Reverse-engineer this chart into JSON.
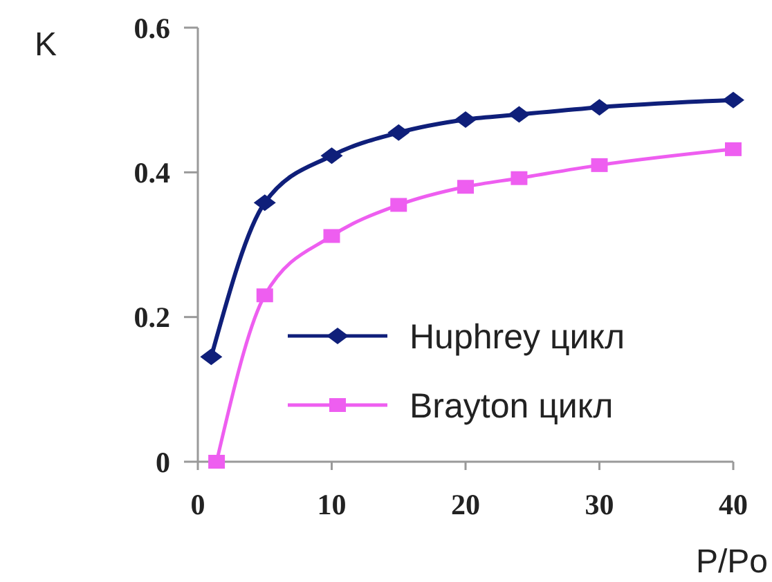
{
  "chart_data": {
    "type": "line",
    "xlabel": "P/Po",
    "ylabel": "K",
    "xlim": [
      0,
      40
    ],
    "xticks": [
      0,
      10,
      20,
      30,
      40
    ],
    "ylim": [
      0,
      0.6
    ],
    "yticks": [
      0,
      0.2,
      0.4,
      0.6
    ],
    "grid": false,
    "legend": "bottom right",
    "series": [
      {
        "name": "Huphrey цикл",
        "color": "#0f1f7a",
        "marker": "diamond",
        "x": [
          1,
          5,
          10,
          15,
          20,
          24,
          30,
          40
        ],
        "values": [
          0.145,
          0.358,
          0.423,
          0.455,
          0.473,
          0.48,
          0.49,
          0.5
        ]
      },
      {
        "name": "Brayton цикл",
        "color": "#ee5ef0",
        "marker": "square",
        "x": [
          1.4,
          5,
          10,
          15,
          20,
          24,
          30,
          40
        ],
        "values": [
          0,
          0.23,
          0.312,
          0.355,
          0.38,
          0.392,
          0.41,
          0.432
        ]
      }
    ]
  }
}
